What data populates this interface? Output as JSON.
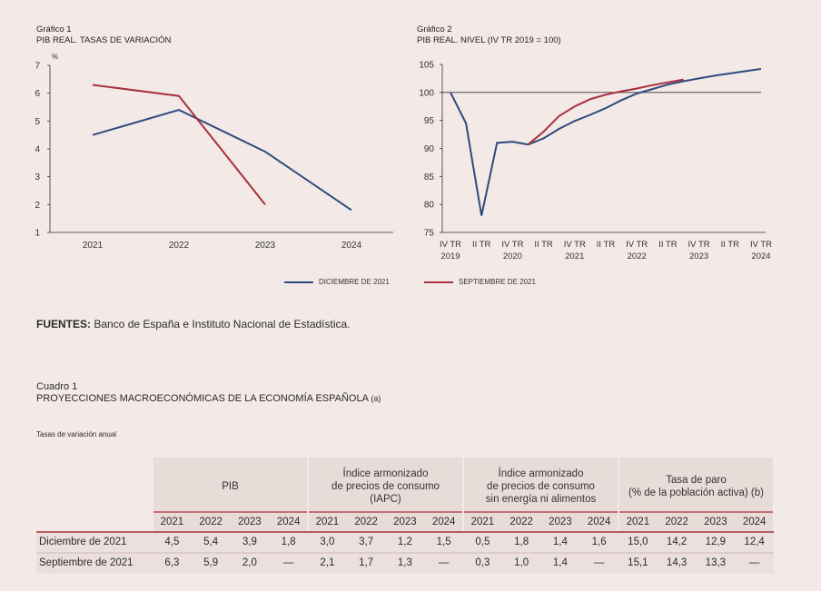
{
  "chart1": {
    "label": "Gráfico 1",
    "title": "PIB REAL. TASAS DE VARIACIÓN",
    "unit": "%"
  },
  "chart2": {
    "label": "Gráfico 2",
    "title": "PIB REAL. NIVEL (IV TR 2019 = 100)"
  },
  "legend": {
    "dic": "DICIEMBRE DE 2021",
    "sep": "SEPTIEMBRE DE 2021"
  },
  "colors": {
    "dic": "#2f4a7e",
    "sep": "#a8313d",
    "background": "#f3e9e6",
    "header_band": "#e8dcd9"
  },
  "sources": {
    "label": "FUENTES:",
    "text": " Banco de España e Instituto Nacional de Estadística."
  },
  "table": {
    "label": "Cuadro 1",
    "title": "PROYECCIONES MACROECONÓMICAS DE LA ECONOMÍA ESPAÑOLA",
    "title_note": "(a)",
    "note": "Tasas de variación anual",
    "groups": [
      [
        "PIB"
      ],
      [
        "Índice armonizado",
        "de precios de consumo",
        "(IAPC)"
      ],
      [
        "Índice armonizado",
        "de precios de consumo",
        "sin energía ni alimentos"
      ],
      [
        "Tasa de paro",
        "(% de la población activa) (b)"
      ]
    ],
    "years": [
      "2021",
      "2022",
      "2023",
      "2024"
    ],
    "rows": [
      {
        "label": "Diciembre de 2021",
        "values": [
          "4,5",
          "5,4",
          "3,9",
          "1,8",
          "3,0",
          "3,7",
          "1,2",
          "1,5",
          "0,5",
          "1,8",
          "1,4",
          "1,6",
          "15,0",
          "14,2",
          "12,9",
          "12,4"
        ]
      },
      {
        "label": "Septiembre de 2021",
        "values": [
          "6,3",
          "5,9",
          "2,0",
          "—",
          "2,1",
          "1,7",
          "1,3",
          "—",
          "0,3",
          "1,0",
          "1,4",
          "—",
          "15,1",
          "14,3",
          "13,3",
          "—"
        ]
      }
    ]
  },
  "chart_data": [
    {
      "type": "line",
      "title": "PIB REAL. TASAS DE VARIACIÓN",
      "ylabel": "%",
      "categories": [
        "2021",
        "2022",
        "2023",
        "2024"
      ],
      "ylim": [
        1,
        7
      ],
      "yticks": [
        1,
        2,
        3,
        4,
        5,
        6,
        7
      ],
      "grid": false,
      "series": [
        {
          "name": "DICIEMBRE DE 2021",
          "values": [
            4.5,
            5.4,
            3.9,
            1.8
          ]
        },
        {
          "name": "SEPTIEMBRE DE 2021",
          "values": [
            6.3,
            5.9,
            2.0,
            null
          ]
        }
      ]
    },
    {
      "type": "line",
      "title": "PIB REAL. NIVEL (IV TR 2019 = 100)",
      "x": [
        "IV TR 2019",
        "I TR 2020",
        "II TR 2020",
        "III TR 2020",
        "IV TR 2020",
        "I TR 2021",
        "II TR 2021",
        "III TR 2021",
        "IV TR 2021",
        "I TR 2022",
        "II TR 2022",
        "III TR 2022",
        "IV TR 2022",
        "I TR 2023",
        "II TR 2023",
        "III TR 2023",
        "IV TR 2023",
        "I TR 2024",
        "II TR 2024",
        "III TR 2024",
        "IV TR 2024"
      ],
      "xtick_labels": [
        {
          "top": "IV TR",
          "bottom": "2019",
          "index": 0
        },
        {
          "top": "II TR",
          "bottom": "",
          "index": 2
        },
        {
          "top": "IV TR",
          "bottom": "2020",
          "index": 4
        },
        {
          "top": "II TR",
          "bottom": "",
          "index": 6
        },
        {
          "top": "IV TR",
          "bottom": "2021",
          "index": 8
        },
        {
          "top": "II TR",
          "bottom": "",
          "index": 10
        },
        {
          "top": "IV TR",
          "bottom": "2022",
          "index": 12
        },
        {
          "top": "II TR",
          "bottom": "",
          "index": 14
        },
        {
          "top": "IV TR",
          "bottom": "2023",
          "index": 16
        },
        {
          "top": "II TR",
          "bottom": "",
          "index": 18
        },
        {
          "top": "IV TR",
          "bottom": "2024",
          "index": 20
        }
      ],
      "ylim": [
        75,
        105
      ],
      "yticks": [
        75,
        80,
        85,
        90,
        95,
        100,
        105
      ],
      "reference_line": 100,
      "grid": false,
      "series": [
        {
          "name": "DICIEMBRE DE 2021",
          "values": [
            100,
            94.5,
            78,
            91,
            91.2,
            90.7,
            91.8,
            93.5,
            94.9,
            96,
            97.2,
            98.6,
            99.8,
            100.6,
            101.4,
            102,
            102.5,
            103,
            103.4,
            103.8,
            104.2
          ]
        },
        {
          "name": "SEPTIEMBRE DE 2021",
          "values": [
            null,
            null,
            null,
            null,
            null,
            90.7,
            93,
            95.8,
            97.5,
            98.8,
            99.6,
            100.2,
            100.7,
            101.3,
            101.8,
            102.3,
            null,
            null,
            null,
            null,
            null
          ]
        }
      ]
    }
  ]
}
